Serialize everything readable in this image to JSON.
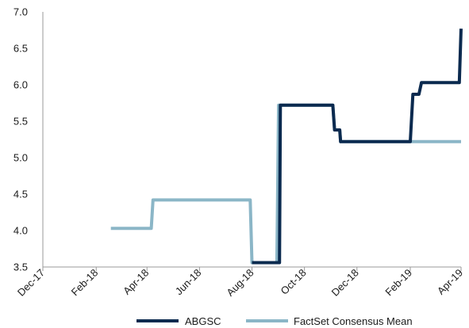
{
  "chart_data": {
    "type": "line",
    "title": "",
    "xlabel": "",
    "ylabel": "",
    "ylim": [
      3.5,
      7.0
    ],
    "y_ticks": [
      "3.5",
      "4.0",
      "4.5",
      "5.0",
      "5.5",
      "6.0",
      "6.5",
      "7.0"
    ],
    "x_range": [
      "2017-12-01",
      "2019-04-01"
    ],
    "x_ticks": [
      {
        "date": "2017-12-01",
        "label": "Dec-17"
      },
      {
        "date": "2018-02-01",
        "label": "Feb-18"
      },
      {
        "date": "2018-04-01",
        "label": "Apr-18"
      },
      {
        "date": "2018-06-01",
        "label": "Jun-18"
      },
      {
        "date": "2018-08-01",
        "label": "Aug-18"
      },
      {
        "date": "2018-10-01",
        "label": "Oct-18"
      },
      {
        "date": "2018-12-01",
        "label": "Dec-18"
      },
      {
        "date": "2019-02-01",
        "label": "Feb-19"
      },
      {
        "date": "2019-04-01",
        "label": "Apr-19"
      }
    ],
    "grid": false,
    "legend_position": "bottom",
    "series": [
      {
        "name": "ABGSC",
        "color": "#0b2a4f",
        "points": [
          [
            "2018-08-01",
            3.56
          ],
          [
            "2018-09-02",
            3.56
          ],
          [
            "2018-09-03",
            5.72
          ],
          [
            "2018-11-03",
            5.72
          ],
          [
            "2018-11-05",
            5.38
          ],
          [
            "2018-11-11",
            5.38
          ],
          [
            "2018-11-12",
            5.22
          ],
          [
            "2019-02-01",
            5.22
          ],
          [
            "2019-02-04",
            5.87
          ],
          [
            "2019-02-11",
            5.87
          ],
          [
            "2019-02-14",
            6.03
          ],
          [
            "2019-03-30",
            6.03
          ],
          [
            "2019-04-01",
            6.77
          ]
        ]
      },
      {
        "name": "FactSet Consensus Mean",
        "color": "#8bb6c7",
        "points": [
          [
            "2018-02-18",
            4.03
          ],
          [
            "2018-04-06",
            4.03
          ],
          [
            "2018-04-08",
            4.42
          ],
          [
            "2018-07-30",
            4.42
          ],
          [
            "2018-08-01",
            3.56
          ],
          [
            "2018-08-30",
            3.56
          ],
          [
            "2018-09-01",
            5.72
          ],
          [
            "2018-11-03",
            5.72
          ],
          [
            "2018-11-05",
            5.38
          ],
          [
            "2018-11-11",
            5.38
          ],
          [
            "2018-11-12",
            5.22
          ],
          [
            "2019-04-01",
            5.22
          ]
        ]
      }
    ]
  }
}
